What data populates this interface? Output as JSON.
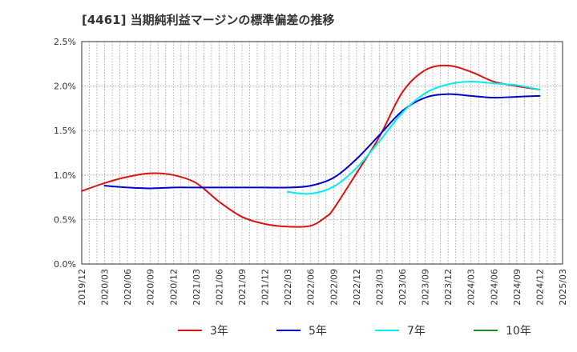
{
  "chart_data": {
    "type": "line",
    "title": "[4461]  当期純利益マージンの標準偏差の推移",
    "xlabel": "",
    "ylabel": "",
    "x_ticks": [
      "2019/12",
      "2020/03",
      "2020/06",
      "2020/09",
      "2020/12",
      "2021/03",
      "2021/06",
      "2021/09",
      "2021/12",
      "2022/03",
      "2022/06",
      "2022/09",
      "2022/12",
      "2023/03",
      "2023/06",
      "2023/09",
      "2023/12",
      "2024/03",
      "2024/06",
      "2024/09",
      "2024/12",
      "2025/03"
    ],
    "y_ticks": [
      "0.0%",
      "0.5%",
      "1.0%",
      "1.5%",
      "2.0%",
      "2.5%"
    ],
    "ylim": [
      0,
      2.5
    ],
    "y_unit": "%",
    "grid": true,
    "legend_position": "bottom",
    "series": [
      {
        "name": "3年",
        "color": "#dd1111",
        "points": [
          [
            "2019/12",
            0.82
          ],
          [
            "2020/03",
            0.91
          ],
          [
            "2020/06",
            0.98
          ],
          [
            "2020/09",
            1.02
          ],
          [
            "2020/12",
            1.0
          ],
          [
            "2021/03",
            0.91
          ],
          [
            "2021/06",
            0.7
          ],
          [
            "2021/09",
            0.53
          ],
          [
            "2021/12",
            0.45
          ],
          [
            "2022/03",
            0.42
          ],
          [
            "2022/06",
            0.43
          ],
          [
            "2022/08",
            0.53
          ],
          [
            "2022/09",
            0.62
          ],
          [
            "2022/12",
            1.02
          ],
          [
            "2023/03",
            1.43
          ],
          [
            "2023/06",
            1.93
          ],
          [
            "2023/09",
            2.18
          ],
          [
            "2023/12",
            2.23
          ],
          [
            "2024/03",
            2.16
          ],
          [
            "2024/06",
            2.05
          ],
          [
            "2024/09",
            2.0
          ],
          [
            "2024/12",
            1.96
          ]
        ]
      },
      {
        "name": "5年",
        "color": "#0000cc",
        "points": [
          [
            "2020/03",
            0.88
          ],
          [
            "2020/06",
            0.86
          ],
          [
            "2020/09",
            0.85
          ],
          [
            "2020/12",
            0.86
          ],
          [
            "2021/03",
            0.86
          ],
          [
            "2021/06",
            0.86
          ],
          [
            "2021/09",
            0.86
          ],
          [
            "2021/12",
            0.86
          ],
          [
            "2022/03",
            0.86
          ],
          [
            "2022/06",
            0.88
          ],
          [
            "2022/09",
            0.97
          ],
          [
            "2022/12",
            1.18
          ],
          [
            "2023/03",
            1.45
          ],
          [
            "2023/06",
            1.72
          ],
          [
            "2023/09",
            1.87
          ],
          [
            "2023/12",
            1.91
          ],
          [
            "2024/03",
            1.89
          ],
          [
            "2024/06",
            1.87
          ],
          [
            "2024/09",
            1.88
          ],
          [
            "2024/12",
            1.89
          ]
        ]
      },
      {
        "name": "7年",
        "color": "#00eeee",
        "points": [
          [
            "2022/03",
            0.81
          ],
          [
            "2022/06",
            0.79
          ],
          [
            "2022/09",
            0.87
          ],
          [
            "2022/12",
            1.08
          ],
          [
            "2023/03",
            1.38
          ],
          [
            "2023/06",
            1.7
          ],
          [
            "2023/09",
            1.92
          ],
          [
            "2023/12",
            2.02
          ],
          [
            "2024/03",
            2.05
          ],
          [
            "2024/06",
            2.03
          ],
          [
            "2024/09",
            2.01
          ],
          [
            "2024/12",
            1.96
          ]
        ]
      },
      {
        "name": "10年",
        "color": "#228b22",
        "points": []
      }
    ]
  }
}
